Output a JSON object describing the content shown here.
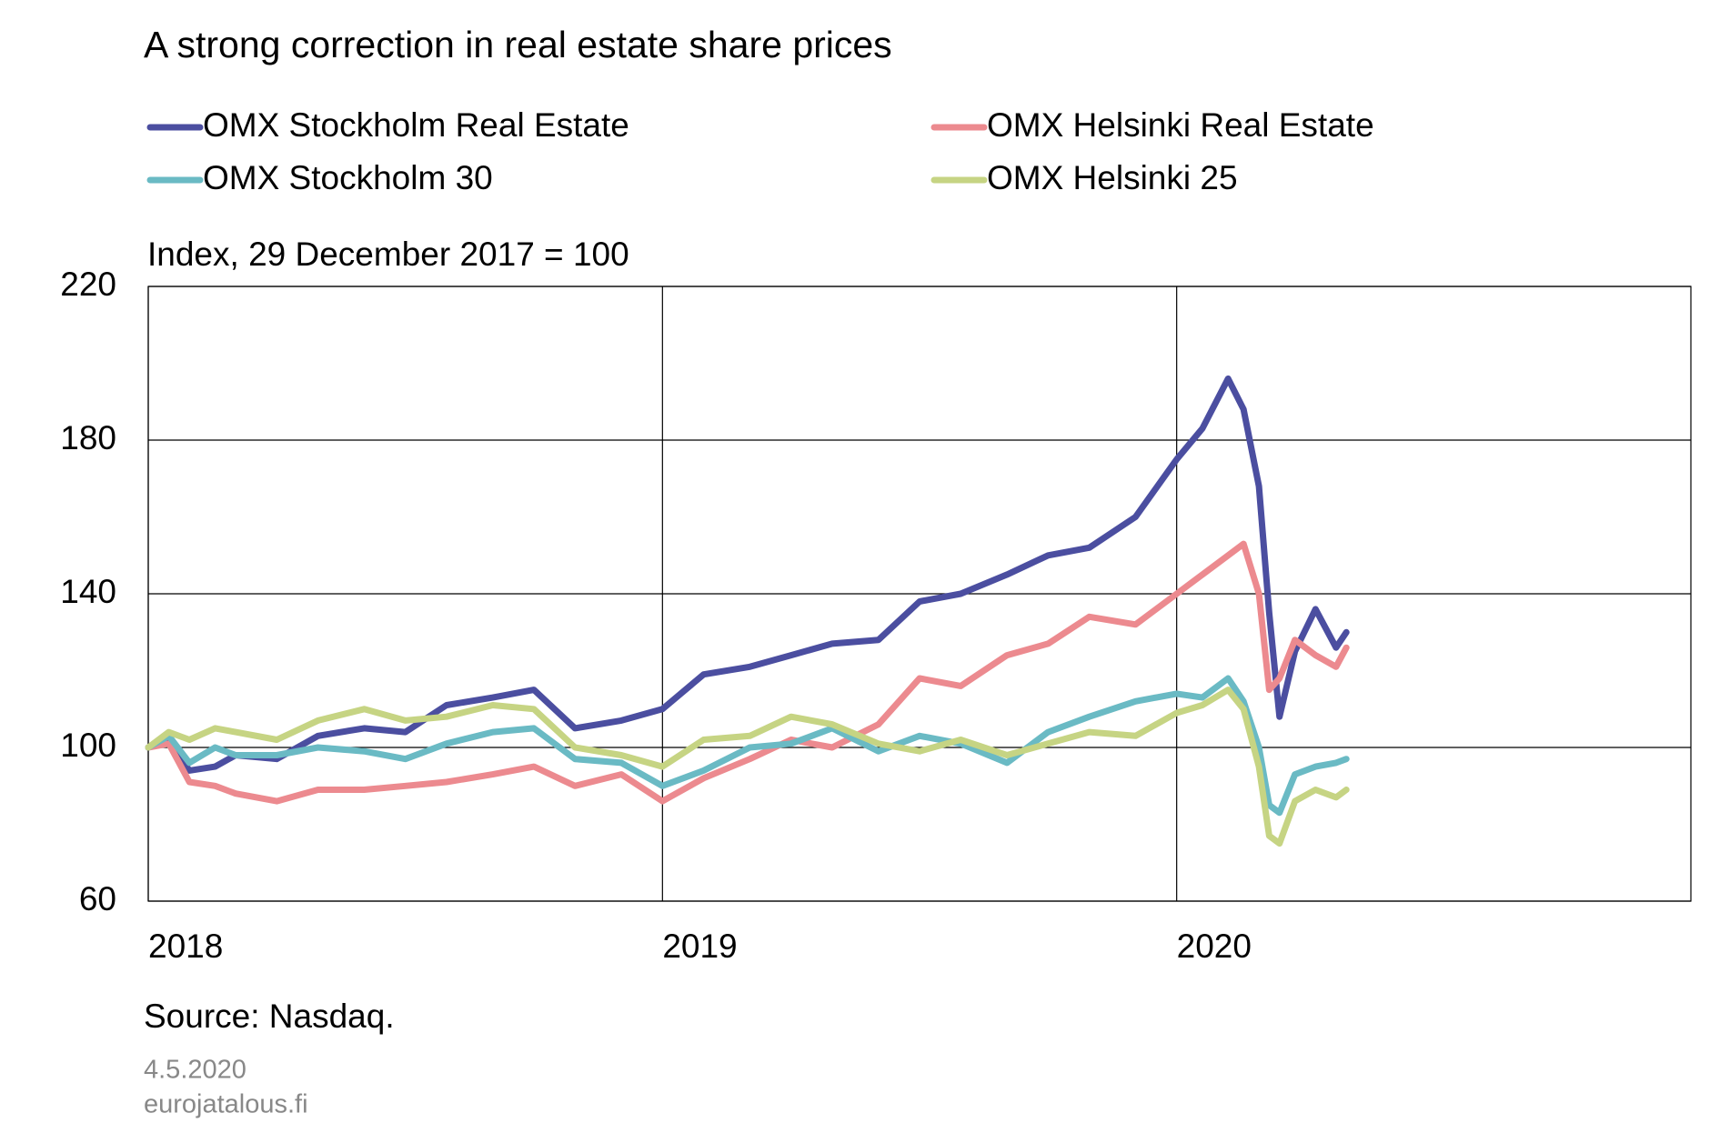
{
  "chart_data": {
    "type": "line",
    "title": "A strong correction in real estate share prices",
    "subtitle": "Index, 29 December 2017 = 100",
    "source": "Source: Nasdaq.",
    "date": "4.5.2020",
    "site": "eurojatalous.fi",
    "x": [
      2018.0,
      2018.04,
      2018.08,
      2018.13,
      2018.17,
      2018.25,
      2018.33,
      2018.42,
      2018.5,
      2018.58,
      2018.67,
      2018.75,
      2018.83,
      2018.92,
      2019.0,
      2019.08,
      2019.17,
      2019.25,
      2019.33,
      2019.42,
      2019.5,
      2019.58,
      2019.67,
      2019.75,
      2019.83,
      2019.92,
      2020.0,
      2020.05,
      2020.1,
      2020.13,
      2020.16,
      2020.18,
      2020.2,
      2020.23,
      2020.27,
      2020.31,
      2020.33
    ],
    "series": [
      {
        "name": "OMX Stockholm Real Estate",
        "color": "#4b4ea0",
        "values": [
          100,
          102,
          94,
          95,
          98,
          97,
          103,
          105,
          104,
          111,
          113,
          115,
          105,
          107,
          110,
          119,
          121,
          124,
          127,
          128,
          138,
          140,
          145,
          150,
          152,
          160,
          175,
          183,
          196,
          188,
          168,
          135,
          108,
          125,
          136,
          126,
          130
        ]
      },
      {
        "name": "OMX Helsinki Real Estate",
        "color": "#ec8a8f",
        "values": [
          100,
          101,
          91,
          90,
          88,
          86,
          89,
          89,
          90,
          91,
          93,
          95,
          90,
          93,
          86,
          92,
          97,
          102,
          100,
          106,
          118,
          116,
          124,
          127,
          134,
          132,
          140,
          145,
          150,
          153,
          140,
          115,
          118,
          128,
          124,
          121,
          126
        ]
      },
      {
        "name": "OMX Stockholm 30",
        "color": "#6abac4",
        "values": [
          100,
          103,
          96,
          100,
          98,
          98,
          100,
          99,
          97,
          101,
          104,
          105,
          97,
          96,
          90,
          94,
          100,
          101,
          105,
          99,
          103,
          101,
          96,
          104,
          108,
          112,
          114,
          113,
          118,
          112,
          100,
          85,
          83,
          93,
          95,
          96,
          97
        ]
      },
      {
        "name": "OMX Helsinki 25",
        "color": "#c6d483",
        "values": [
          100,
          104,
          102,
          105,
          104,
          102,
          107,
          110,
          107,
          108,
          111,
          110,
          100,
          98,
          95,
          102,
          103,
          108,
          106,
          101,
          99,
          102,
          98,
          101,
          104,
          103,
          109,
          111,
          115,
          110,
          95,
          77,
          75,
          86,
          89,
          87,
          89
        ]
      }
    ],
    "xlim": [
      2018,
      2021
    ],
    "xticks": [
      2018,
      2019,
      2020
    ],
    "ylim": [
      60,
      220
    ],
    "yticks": [
      60,
      100,
      140,
      180,
      220
    ],
    "grid": true
  }
}
